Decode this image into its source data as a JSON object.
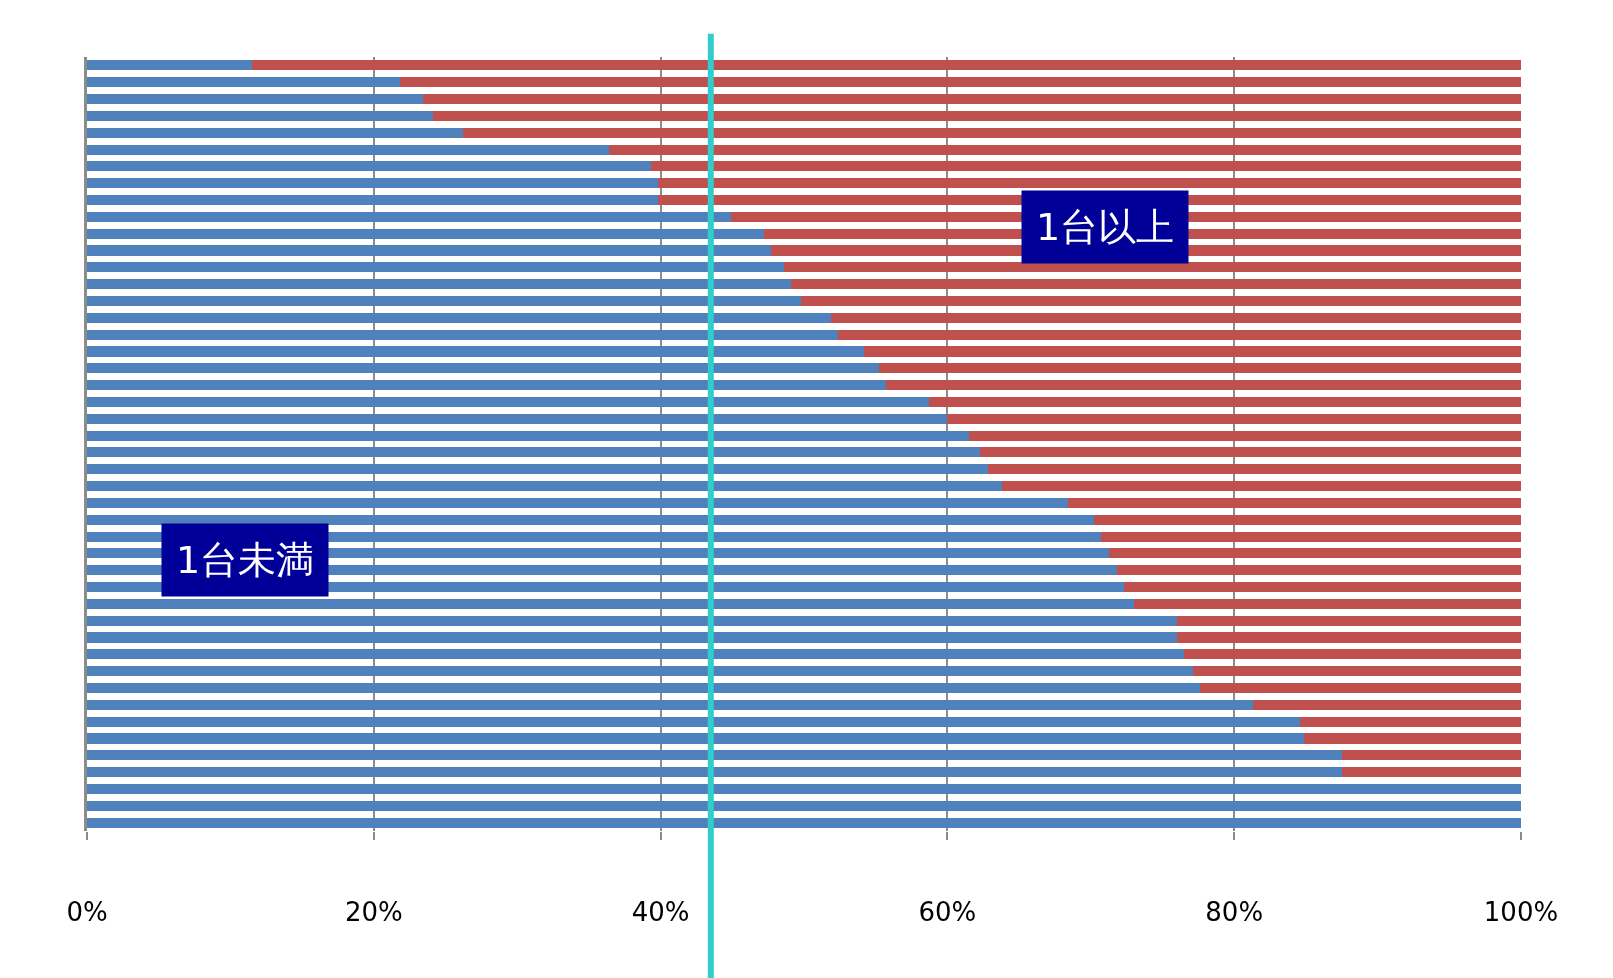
{
  "chart_data": {
    "type": "bar",
    "orientation": "horizontal",
    "stacked": true,
    "tick_labels": "x",
    "grid": "x",
    "legend": false,
    "categories": [
      null,
      null,
      null,
      null,
      null,
      null,
      null,
      null,
      null,
      null,
      null,
      null,
      null,
      null,
      null,
      null,
      null,
      null,
      null,
      null,
      null,
      null,
      null,
      null,
      null,
      null,
      null,
      null,
      null,
      null,
      null,
      null,
      null,
      null,
      null,
      null,
      null,
      null,
      null,
      null,
      null,
      null,
      null,
      null,
      null,
      null
    ],
    "series": [
      {
        "name": "1台未満",
        "color": "#4f81bd",
        "values": [
          11.5,
          21.8,
          23.4,
          24.1,
          26.2,
          36.4,
          39.3,
          39.8,
          39.8,
          44.9,
          47.2,
          47.7,
          48.6,
          49.1,
          49.8,
          51.9,
          52.4,
          54.2,
          55.2,
          55.7,
          58.7,
          60.0,
          61.5,
          62.3,
          62.8,
          63.8,
          68.4,
          70.2,
          70.7,
          71.3,
          71.8,
          72.3,
          73.0,
          76.0,
          76.0,
          76.5,
          77.1,
          77.6,
          81.3,
          84.6,
          84.9,
          87.5,
          87.5,
          100,
          100,
          100
        ]
      },
      {
        "name": "1台以上",
        "color": "#c0504d",
        "values": [
          88.5,
          78.2,
          76.6,
          75.9,
          73.8,
          63.6,
          60.7,
          60.2,
          60.2,
          55.1,
          52.8,
          52.3,
          51.4,
          50.9,
          50.2,
          48.1,
          47.6,
          45.8,
          44.8,
          44.3,
          41.3,
          40.0,
          38.5,
          37.7,
          37.2,
          36.2,
          31.6,
          29.8,
          29.3,
          28.7,
          28.2,
          27.7,
          27.0,
          24.0,
          24.0,
          23.5,
          22.9,
          22.4,
          18.7,
          15.4,
          15.1,
          12.5,
          12.5,
          0,
          0,
          0
        ]
      }
    ],
    "xlim": [
      0,
      100
    ],
    "xticks": [
      {
        "value": 0,
        "label": "0%"
      },
      {
        "value": 20,
        "label": "20%"
      },
      {
        "value": 40,
        "label": "40%"
      },
      {
        "value": 60,
        "label": "60%"
      },
      {
        "value": 80,
        "label": "80%"
      },
      {
        "value": 100,
        "label": "100%"
      }
    ],
    "ref_lines": [
      {
        "axis": "x",
        "value": 43.5,
        "color": "#33cccc"
      }
    ]
  }
}
